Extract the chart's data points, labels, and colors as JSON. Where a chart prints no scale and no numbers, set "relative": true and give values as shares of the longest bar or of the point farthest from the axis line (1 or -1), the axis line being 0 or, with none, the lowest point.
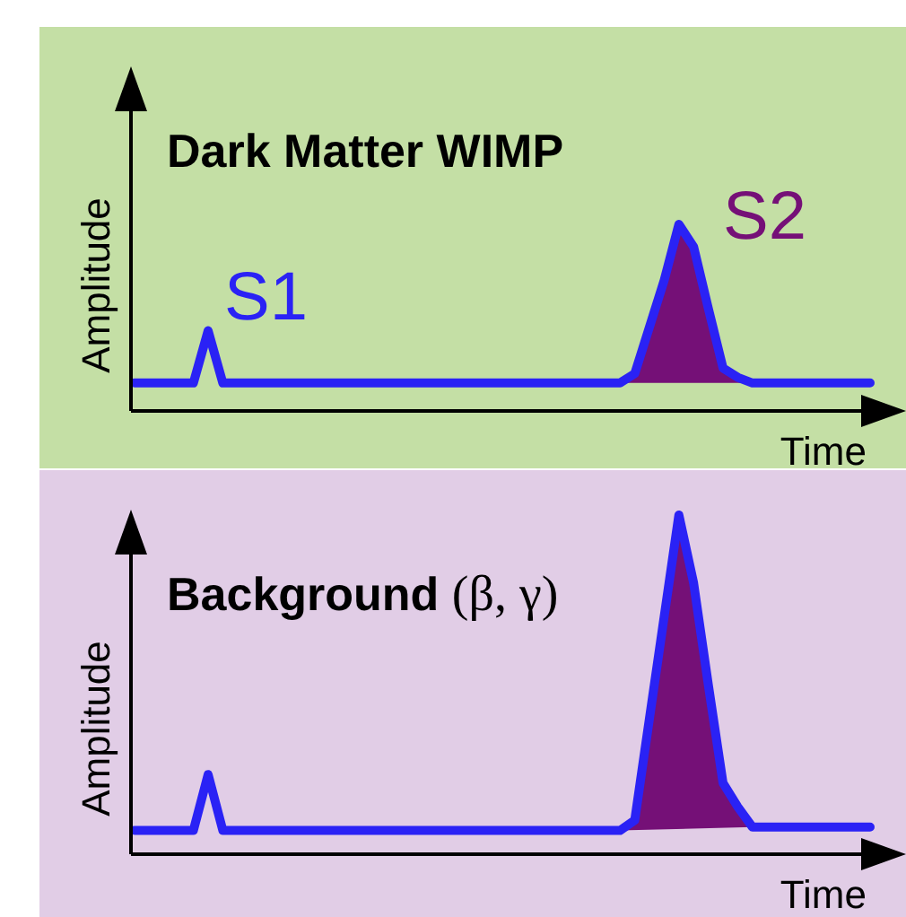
{
  "chart_data": [
    {
      "type": "line",
      "title": "Dark Matter WIMP",
      "xlabel": "Time",
      "ylabel": "Amplitude",
      "relative": true,
      "annotations": [
        "S1",
        "S2"
      ],
      "categories": [
        null,
        null,
        null,
        null,
        null,
        null,
        null,
        null,
        null,
        null,
        null,
        null,
        null,
        null,
        null,
        null,
        null,
        null,
        null,
        null,
        null,
        null,
        null,
        null,
        null,
        null,
        null,
        null,
        null,
        null,
        null,
        null,
        null,
        null,
        null,
        null,
        null,
        null,
        null,
        null,
        null,
        null,
        null,
        null,
        null,
        null,
        null,
        null,
        null,
        null,
        null
      ],
      "series": [
        {
          "color": "#2a22f5",
          "values": [
            0.15,
            0.15,
            0.15,
            0.15,
            0.15,
            0.43,
            0.15,
            0.15,
            0.15,
            0.15,
            0.15,
            0.15,
            0.15,
            0.15,
            0.15,
            0.15,
            0.15,
            0.15,
            0.15,
            0.15,
            0.15,
            0.15,
            0.15,
            0.15,
            0.15,
            0.15,
            0.15,
            0.15,
            0.15,
            0.15,
            0.15,
            0.15,
            0.15,
            0.15,
            0.2,
            0.45,
            0.7,
            1,
            0.88,
            0.55,
            0.23,
            0.18,
            0.15,
            0.15,
            0.15,
            0.15,
            0.15,
            0.15,
            0.15,
            0.15,
            0.15
          ]
        },
        {
          "type": "area",
          "color": "#751077",
          "values": [
            null,
            null,
            null,
            null,
            null,
            null,
            null,
            null,
            null,
            null,
            null,
            null,
            null,
            null,
            null,
            null,
            null,
            null,
            null,
            null,
            null,
            null,
            null,
            null,
            null,
            null,
            null,
            null,
            null,
            null,
            null,
            null,
            null,
            0.15,
            0.2,
            0.45,
            0.7,
            1,
            0.88,
            0.55,
            0.23,
            0.18,
            0.15,
            null,
            null,
            null,
            null,
            null,
            null,
            null,
            null
          ]
        }
      ]
    },
    {
      "type": "line",
      "title": "Background (β, γ)",
      "xlabel": "Time",
      "ylabel": "Amplitude",
      "relative": true,
      "categories": [
        null,
        null,
        null,
        null,
        null,
        null,
        null,
        null,
        null,
        null,
        null,
        null,
        null,
        null,
        null,
        null,
        null,
        null,
        null,
        null,
        null,
        null,
        null,
        null,
        null,
        null,
        null,
        null,
        null,
        null,
        null,
        null,
        null,
        null,
        null,
        null,
        null,
        null,
        null,
        null,
        null,
        null,
        null,
        null,
        null,
        null,
        null,
        null,
        null,
        null,
        null
      ],
      "series": [
        {
          "color": "#2a22f5",
          "values": [
            0.07,
            0.07,
            0.07,
            0.07,
            0.07,
            0.235,
            0.07,
            0.07,
            0.07,
            0.07,
            0.07,
            0.07,
            0.07,
            0.07,
            0.07,
            0.07,
            0.07,
            0.07,
            0.07,
            0.07,
            0.07,
            0.07,
            0.07,
            0.07,
            0.07,
            0.07,
            0.07,
            0.07,
            0.07,
            0.07,
            0.07,
            0.07,
            0.07,
            0.07,
            0.1,
            0.4,
            0.7,
            1,
            0.8,
            0.5,
            0.21,
            0.14,
            0.08,
            0.08,
            0.08,
            0.08,
            0.08,
            0.08,
            0.08,
            0.08,
            0.08
          ]
        },
        {
          "type": "area",
          "color": "#751077",
          "values": [
            null,
            null,
            null,
            null,
            null,
            null,
            null,
            null,
            null,
            null,
            null,
            null,
            null,
            null,
            null,
            null,
            null,
            null,
            null,
            null,
            null,
            null,
            null,
            null,
            null,
            null,
            null,
            null,
            null,
            null,
            null,
            null,
            null,
            0.07,
            0.1,
            0.4,
            0.7,
            1,
            0.8,
            0.5,
            0.21,
            0.14,
            0.08,
            null,
            null,
            null,
            null,
            null,
            null,
            null,
            null
          ]
        }
      ]
    }
  ]
}
